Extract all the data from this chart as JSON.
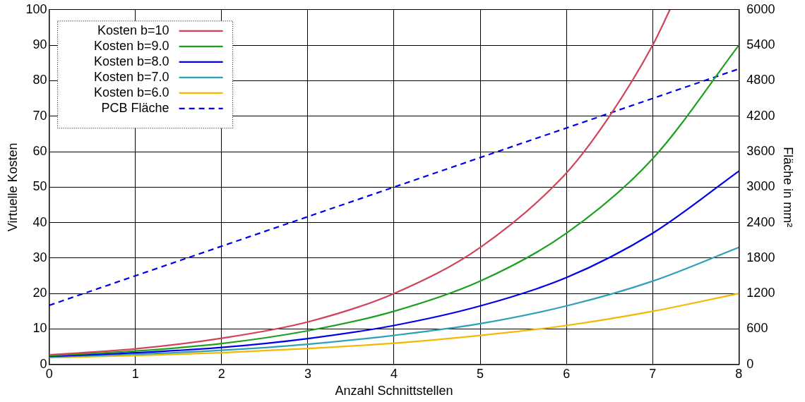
{
  "chart_data": {
    "type": "line",
    "xlabel": "Anzahl Schnittstellen",
    "ylabel": "Virtuelle Kosten",
    "y2label": "Fläche in mm²",
    "xlim": [
      0,
      8
    ],
    "xticks": [
      0,
      1,
      2,
      3,
      4,
      5,
      6,
      7,
      8
    ],
    "ylim": [
      0,
      100
    ],
    "yticks": [
      0,
      10,
      20,
      30,
      40,
      50,
      60,
      70,
      80,
      90,
      100
    ],
    "y2lim": [
      0,
      6000
    ],
    "y2ticks": [
      0,
      600,
      1200,
      1800,
      2400,
      3000,
      3600,
      4200,
      4800,
      5400,
      6000
    ],
    "grid": true,
    "legend": "top left",
    "line_style": "solid",
    "series": [
      {
        "name": "Kosten b=10",
        "color": "#d2425a",
        "x": [
          0,
          1,
          2,
          3,
          4,
          5,
          6,
          6.5,
          7,
          7.2
        ],
        "values": [
          2.7,
          4.4,
          7.4,
          12,
          20,
          33,
          54,
          70,
          90,
          100
        ]
      },
      {
        "name": "Kosten b=9.0",
        "color": "#1ea01e",
        "x": [
          0,
          1,
          2,
          3,
          4,
          5,
          6,
          7,
          8
        ],
        "values": [
          2.5,
          3.8,
          5.9,
          9.5,
          15,
          23.5,
          37,
          58,
          90
        ]
      },
      {
        "name": "Kosten b=8.0",
        "color": "#0000ee",
        "x": [
          0,
          1,
          2,
          3,
          4,
          5,
          6,
          7,
          8
        ],
        "values": [
          2.3,
          3.3,
          4.8,
          7.3,
          11,
          16.5,
          24.5,
          37,
          54.5
        ]
      },
      {
        "name": "Kosten b=7.0",
        "color": "#30a0b8",
        "x": [
          0,
          1,
          2,
          3,
          4,
          5,
          6,
          7,
          8
        ],
        "values": [
          2.1,
          2.9,
          4,
          5.7,
          8.2,
          11.5,
          16.5,
          23.5,
          33
        ]
      },
      {
        "name": "Kosten b=6.0",
        "color": "#f5b800",
        "x": [
          0,
          1,
          2,
          3,
          4,
          5,
          6,
          7,
          8
        ],
        "values": [
          1.9,
          2.5,
          3.3,
          4.5,
          6,
          8.2,
          11,
          15,
          20
        ]
      },
      {
        "name": "PCB Fläche",
        "color": "#0000ee",
        "axis": "y2",
        "line_style": "dashed",
        "x": [
          0,
          8
        ],
        "values": [
          1000,
          5000
        ]
      }
    ]
  }
}
